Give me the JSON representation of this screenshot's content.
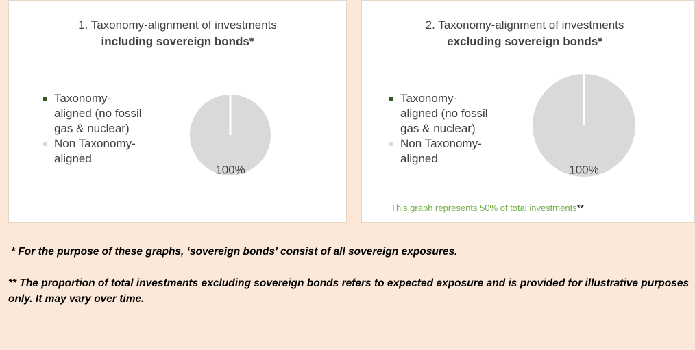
{
  "chart_data": [
    {
      "type": "pie",
      "title": "1. Taxonomy-alignment of investments",
      "subtitle": "including sovereign bonds*",
      "categories": [
        "Taxonomy-aligned (no fossil gas & nuclear)",
        "Non Taxonomy-aligned"
      ],
      "values": [
        0,
        100
      ],
      "value_labels": [
        null,
        "100%"
      ],
      "colors": [
        "#375623",
        "#d9d9d9"
      ]
    },
    {
      "type": "pie",
      "title": "2. Taxonomy-alignment of investments",
      "subtitle": "excluding sovereign bonds*",
      "categories": [
        "Taxonomy-aligned (no fossil gas & nuclear)",
        "Non Taxonomy-aligned"
      ],
      "values": [
        0,
        100
      ],
      "value_labels": [
        null,
        "100%"
      ],
      "colors": [
        "#375623",
        "#d9d9d9"
      ],
      "annotation": "This graph represents 50% of total investments",
      "annotation_mark": "**"
    }
  ],
  "footnotes": [
    "* For the purpose of these graphs, ‘sovereign bonds’ consist of all sovereign exposures.",
    "** The proportion of total investments excluding sovereign bonds refers to expected exposure and is provided for illustrative purposes only. It may vary over time."
  ]
}
